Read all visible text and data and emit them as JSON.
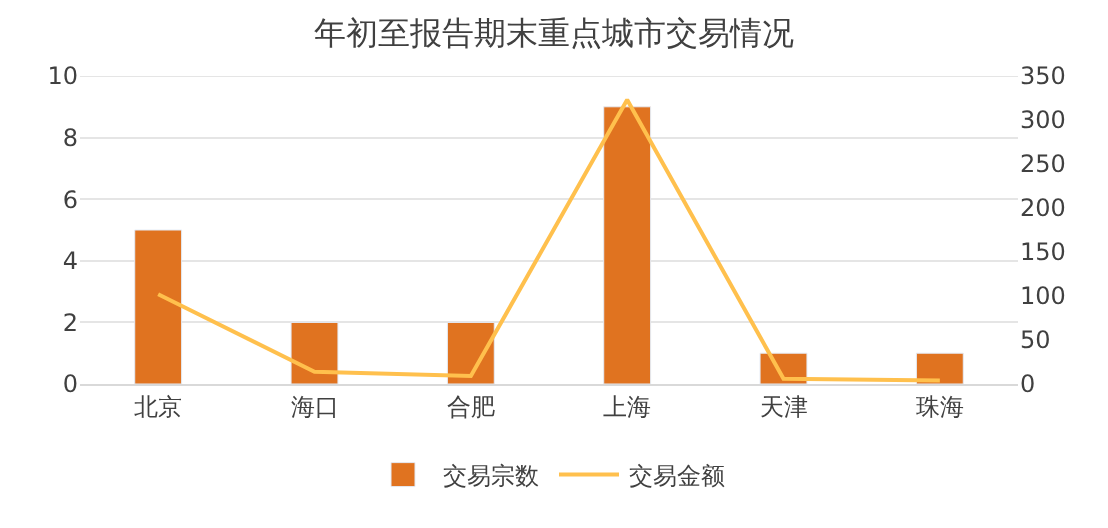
{
  "chart_data": {
    "type": "bar",
    "title": "年初至报告期末重点城市交易情况",
    "categories": [
      "北京",
      "海口",
      "合肥",
      "上海",
      "天津",
      "珠海"
    ],
    "series": [
      {
        "name": "交易宗数",
        "color": "#e07320",
        "values": [
          5,
          2,
          2,
          9,
          1,
          1
        ]
      },
      {
        "name": "交易金额",
        "type": "line",
        "axis": "y2",
        "color": "#ffc04d",
        "marker": "none",
        "values": [
          102,
          14,
          9,
          323,
          6,
          4
        ]
      }
    ],
    "ylim": [
      0,
      10
    ],
    "yticks": [
      0,
      2,
      4,
      6,
      8,
      10
    ],
    "y2lim": [
      0,
      350
    ],
    "y2ticks": [
      0,
      50,
      100,
      150,
      200,
      250,
      300,
      350
    ],
    "grid": "y",
    "legend": "bottom"
  }
}
